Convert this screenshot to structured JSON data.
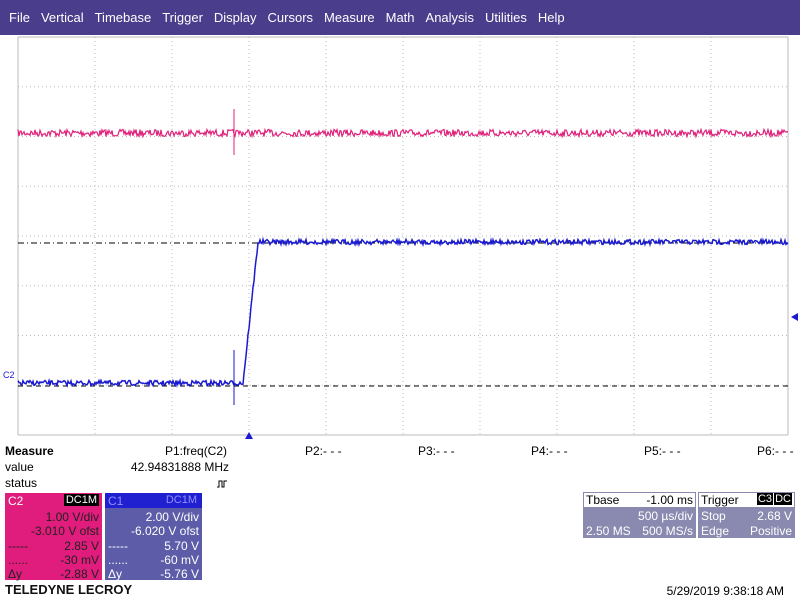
{
  "menu": [
    "File",
    "Vertical",
    "Timebase",
    "Trigger",
    "Display",
    "Cursors",
    "Measure",
    "Math",
    "Analysis",
    "Utilities",
    "Help"
  ],
  "trace_label": "C2",
  "measure": {
    "title": "Measure",
    "row_labels": [
      "value",
      "status"
    ],
    "params": [
      {
        "name": "P1:freq(C2)",
        "value": "42.94831888 MHz"
      },
      {
        "name": "P2:- - -"
      },
      {
        "name": "P3:- - -"
      },
      {
        "name": "P4:- - -"
      },
      {
        "name": "P5:- - -"
      },
      {
        "name": "P6:- - -"
      }
    ]
  },
  "channels": [
    {
      "label": "C2",
      "coupling": "DC1M",
      "vdiv": "1.00 V/div",
      "offset": "-3.010 V ofst",
      "cursor1": "2.85 V",
      "cursor2": "-30 mV",
      "delta_label": "Δy",
      "delta": "-2.88 V"
    },
    {
      "label": "C1",
      "coupling": "DC1M",
      "vdiv": "2.00 V/div",
      "offset": "-6.020 V ofst",
      "cursor1": "5.70 V",
      "cursor2": "-60 mV",
      "delta_label": "Δy",
      "delta": "-5.76 V"
    }
  ],
  "timebase": {
    "label": "Tbase",
    "delay": "-1.00 ms",
    "tdiv": "500 µs/div",
    "samples": "2.50 MS",
    "rate": "500 MS/s"
  },
  "trigger": {
    "label": "Trigger",
    "source": "C3",
    "coupling": "DC",
    "mode": "Stop",
    "level": "2.68 V",
    "type": "Edge",
    "slope": "Positive"
  },
  "footer": {
    "brand": "TELEDYNE LECROY",
    "timestamp": "5/29/2019 9:38:18 AM"
  }
}
